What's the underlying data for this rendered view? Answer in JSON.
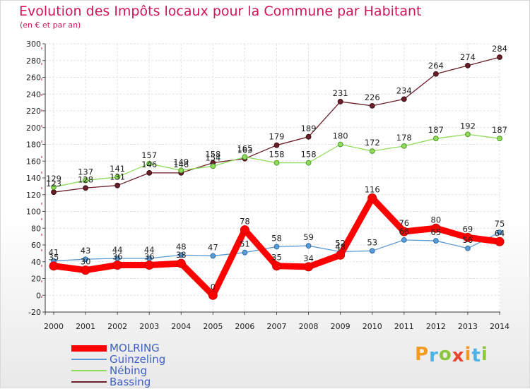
{
  "chart_data": {
    "type": "line",
    "title": "Evolution des Impôts locaux pour la Commune par Habitant",
    "subtitle": "(en € et par an)",
    "x": [
      "2000",
      "2001",
      "2002",
      "2003",
      "2004",
      "2005",
      "2006",
      "2007",
      "2008",
      "2009",
      "2010",
      "2011",
      "2012",
      "2013",
      "2014"
    ],
    "ylim": [
      -20,
      300
    ],
    "yticks": [
      -20,
      0,
      20,
      40,
      60,
      80,
      100,
      120,
      140,
      160,
      180,
      200,
      220,
      240,
      260,
      280,
      300
    ],
    "grid": true,
    "legend_position": "bottom-left",
    "series": [
      {
        "name": "MOLRING",
        "color": "#ff0000",
        "values": [
          35,
          30,
          36,
          36,
          38,
          0,
          78,
          35,
          34,
          48,
          116,
          76,
          80,
          69,
          64
        ]
      },
      {
        "name": "Guinzeling",
        "color": "#5b9bd5",
        "values": [
          41,
          43,
          44,
          44,
          48,
          47,
          51,
          58,
          59,
          52,
          53,
          66,
          65,
          56,
          75
        ]
      },
      {
        "name": "Nébing",
        "color": "#8fdc5a",
        "values": [
          129,
          137,
          141,
          157,
          149,
          154,
          165,
          158,
          158,
          180,
          172,
          178,
          187,
          192,
          187
        ]
      },
      {
        "name": "Bassing",
        "color": "#6b1f2a",
        "values": [
          123,
          128,
          131,
          146,
          146,
          158,
          163,
          179,
          189,
          231,
          226,
          234,
          264,
          274,
          284
        ]
      }
    ]
  },
  "branding": {
    "logo_letters": [
      "P",
      "r",
      "o",
      "x",
      "i",
      "t",
      "i"
    ],
    "logo_colors": [
      "#f39c1f",
      "#4bb3e6",
      "#8cc63f",
      "#e8452c",
      "#f39c1f",
      "#4bb3e6",
      "#8cc63f"
    ]
  }
}
